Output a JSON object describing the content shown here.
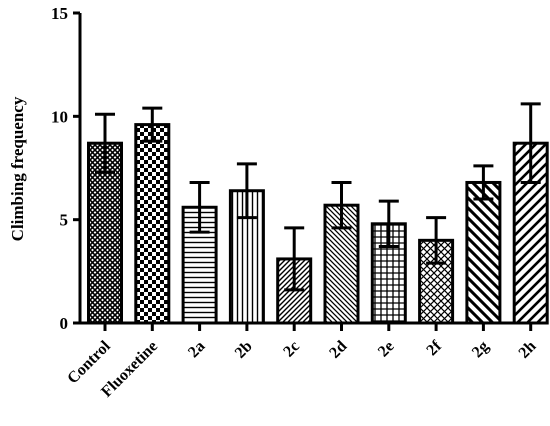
{
  "chart_data": {
    "type": "bar",
    "title": "",
    "xlabel": "",
    "ylabel": "Climbing frequency",
    "ylim": [
      0,
      15
    ],
    "yticks": [
      0,
      5,
      10,
      15
    ],
    "grid": false,
    "legend": "none",
    "categories": [
      "Control",
      "Fluoxetine",
      "2a",
      "2b",
      "2c",
      "2d",
      "2e",
      "2f",
      "2g",
      "2h"
    ],
    "values": [
      8.7,
      9.6,
      5.6,
      6.4,
      3.1,
      5.7,
      4.8,
      4.0,
      6.8,
      8.7
    ],
    "errors": [
      1.4,
      0.8,
      1.2,
      1.3,
      1.5,
      1.1,
      1.1,
      1.1,
      0.8,
      1.9
    ],
    "patterns": [
      "crosshatch-dense",
      "checkerboard",
      "horizontal-lines",
      "vertical-lines",
      "diagonal-up-fine",
      "diagonal-down",
      "grid",
      "diamond-hatch",
      "diagonal-down-wide",
      "diagonal-up-wide"
    ],
    "bar_color": "#000000",
    "background": "#ffffff"
  }
}
